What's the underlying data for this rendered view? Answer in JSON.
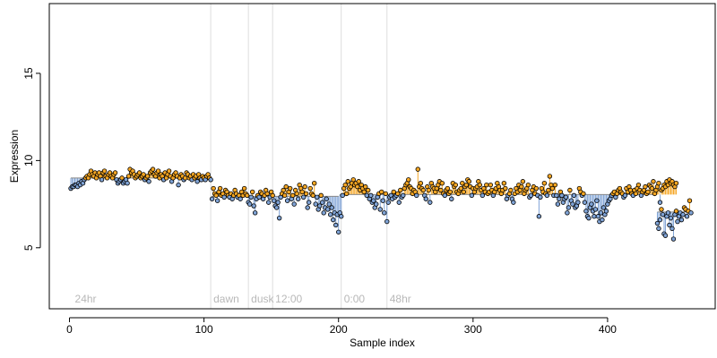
{
  "chart_data": {
    "type": "scatter",
    "title": "",
    "xlabel": "Sample index",
    "ylabel": "Expression",
    "xlim": [
      -15,
      480
    ],
    "ylim": [
      1.5,
      19
    ],
    "x_ticks": [
      0,
      100,
      200,
      300,
      400
    ],
    "y_ticks": [
      5,
      10,
      15
    ],
    "grid": false,
    "legend": "none",
    "baseline_segments": [
      {
        "x_start": 1,
        "x_end": 105,
        "y": 9.0
      },
      {
        "x_start": 106,
        "x_end": 200,
        "y": 7.95
      },
      {
        "x_start": 201,
        "x_end": 436,
        "y": 8.05
      },
      {
        "x_start": 437,
        "x_end": 462,
        "y": 7.05
      }
    ],
    "markers": [
      {
        "x": 105,
        "label": "dawn"
      },
      {
        "x": 133,
        "label": "dusk"
      },
      {
        "x": 151,
        "label": "12:00"
      },
      {
        "x": 202,
        "label": "0:00"
      },
      {
        "x": 236,
        "label": "48hr"
      }
    ],
    "start_label": "24hr",
    "colors": {
      "above": "#f5a623",
      "below": "#7fa3d6",
      "point_edge": "#000000",
      "marker_line": "#dddddd",
      "annotation": "#b8b8b8"
    },
    "series": [
      {
        "segment": 1,
        "x_start": 1,
        "y": [
          8.4,
          8.5,
          8.5,
          8.6,
          8.6,
          8.5,
          8.7,
          8.6,
          8.8,
          8.7,
          8.9,
          9.0,
          9.1,
          9.0,
          9.2,
          9.4,
          9.2,
          9.1,
          9.3,
          9.0,
          9.2,
          9.3,
          9.1,
          8.9,
          9.3,
          9.4,
          9.1,
          9.0,
          9.2,
          9.3,
          9.1,
          9.0,
          9.2,
          9.3,
          8.9,
          8.7,
          8.8,
          8.9,
          9.0,
          8.7,
          8.8,
          8.9,
          8.7,
          9.1,
          9.5,
          9.3,
          9.4,
          9.2,
          9.0,
          9.1,
          9.2,
          9.3,
          9.0,
          9.1,
          9.2,
          8.9,
          9.0,
          9.1,
          8.8,
          9.3,
          9.4,
          9.5,
          9.2,
          9.1,
          9.3,
          9.4,
          9.0,
          9.2,
          9.1,
          8.9,
          9.3,
          9.0,
          9.2,
          9.4,
          9.1,
          8.8,
          9.0,
          9.2,
          9.3,
          9.1,
          8.6,
          9.0,
          9.2,
          9.1,
          8.9,
          9.0,
          9.3,
          9.2,
          9.0,
          9.1,
          8.9,
          9.2,
          9.0,
          9.1,
          8.8,
          9.2,
          9.0,
          8.9,
          9.1,
          9.0,
          8.9,
          9.1,
          9.2,
          9.0,
          8.9
        ]
      },
      {
        "segment": 2,
        "x_start": 106,
        "y": [
          7.8,
          8.4,
          8.1,
          8.0,
          7.7,
          8.2,
          8.4,
          8.0,
          8.1,
          7.9,
          8.3,
          8.2,
          8.0,
          7.9,
          8.1,
          7.8,
          8.0,
          8.3,
          8.1,
          7.9,
          8.0,
          7.8,
          8.2,
          8.0,
          8.4,
          8.1,
          8.0,
          7.6,
          7.5,
          7.9,
          8.2,
          7.4,
          7.0,
          7.8,
          8.0,
          7.9,
          8.2,
          8.1,
          7.8,
          8.0,
          8.3,
          8.1,
          7.6,
          7.9,
          8.2,
          8.0,
          7.7,
          7.4,
          7.3,
          7.6,
          6.7,
          7.9,
          8.1,
          8.3,
          8.0,
          8.5,
          7.7,
          8.2,
          8.4,
          7.8,
          8.0,
          7.5,
          8.3,
          8.1,
          7.8,
          8.6,
          8.4,
          8.2,
          7.9,
          8.5,
          8.1,
          7.3,
          7.6,
          8.4,
          8.1,
          8.0,
          8.7,
          7.5,
          7.9,
          7.2,
          7.4,
          8.0,
          7.6,
          7.0,
          7.3,
          7.8,
          7.2,
          7.5,
          6.9,
          7.3,
          6.6,
          7.0,
          6.3,
          6.9,
          5.9
        ]
      },
      {
        "segment": 3,
        "x_start": 201,
        "y": [
          7.0,
          6.8,
          8.0,
          8.4,
          8.6,
          8.1,
          8.8,
          8.4,
          8.5,
          8.7,
          8.9,
          8.6,
          8.7,
          8.5,
          8.8,
          8.3,
          8.6,
          8.4,
          8.2,
          8.5,
          8.0,
          8.3,
          7.8,
          8.0,
          7.6,
          7.7,
          7.3,
          7.5,
          7.9,
          8.1,
          7.2,
          8.2,
          7.7,
          7.0,
          8.1,
          6.5,
          7.6,
          7.9,
          8.0,
          7.8,
          8.2,
          7.9,
          8.0,
          8.1,
          7.6,
          8.3,
          7.9,
          8.0,
          8.4,
          8.6,
          8.7,
          8.9,
          8.5,
          8.4,
          8.1,
          8.3,
          8.2,
          8.0,
          9.5,
          8.5,
          8.7,
          8.4,
          8.3,
          8.0,
          7.8,
          8.5,
          8.3,
          7.6,
          8.7,
          8.5,
          8.4,
          8.2,
          8.4,
          8.6,
          8.8,
          8.3,
          8.7,
          8.1,
          8.0,
          8.3,
          8.4,
          8.1,
          8.2,
          7.8,
          8.7,
          8.5,
          8.6,
          8.2,
          8.1,
          8.3,
          8.4,
          8.7,
          8.2,
          8.5,
          8.6,
          8.9,
          8.8,
          8.5,
          8.0,
          8.4,
          8.2,
          8.4,
          8.5,
          8.8,
          8.6,
          8.3,
          8.0,
          8.4,
          8.2,
          8.6,
          8.1,
          8.2,
          8.6,
          8.3,
          8.0,
          8.2,
          8.4,
          8.7,
          8.5,
          8.3,
          8.1,
          8.3,
          8.7,
          8.4,
          7.8,
          8.0,
          8.1,
          8.3,
          7.8,
          7.6,
          8.1,
          8.4,
          8.2,
          8.6,
          8.3,
          8.5,
          8.8,
          8.1,
          8.3,
          8.4,
          8.6,
          7.9,
          8.0,
          8.3,
          8.5,
          8.1,
          8.4,
          8.0,
          6.8,
          7.9,
          8.4,
          8.2,
          8.7,
          8.1,
          8.0,
          8.3,
          9.1,
          8.6,
          8.4,
          8.0,
          8.6,
          8.0,
          7.5,
          7.8,
          8.2,
          8.0,
          7.6,
          7.8,
          7.9,
          7.0,
          7.3,
          8.3,
          7.7,
          7.5,
          8.0,
          7.3,
          7.4,
          7.6,
          8.4,
          8.2,
          8.0,
          8.1,
          7.6,
          7.1,
          6.8,
          6.7,
          7.3,
          7.5,
          7.1,
          6.8,
          7.2,
          7.7,
          6.8,
          6.5,
          7.0,
          6.6,
          7.3,
          6.9,
          7.1,
          7.5,
          7.7,
          7.8,
          8.0,
          8.1,
          8.2,
          7.9,
          8.1,
          8.3,
          8.4,
          8.2,
          8.1,
          7.9,
          8.0,
          8.4,
          8.2,
          8.5,
          8.3,
          8.1,
          8.0,
          8.3,
          8.1,
          8.4,
          8.6,
          8.3,
          8.0,
          8.2,
          8.3,
          8.5,
          8.1,
          8.2,
          8.6,
          8.5,
          8.4,
          8.8,
          8.1,
          8.3,
          8.5,
          8.7,
          7.6,
          8.3,
          8.4,
          8.6,
          8.5,
          8.8,
          8.6,
          8.9,
          8.7,
          8.8,
          8.6,
          8.5,
          8.7
        ]
      },
      {
        "segment": 4,
        "x_start": 437,
        "y": [
          6.4,
          6.1,
          6.6,
          7.2,
          6.9,
          5.8,
          5.7,
          6.8,
          7.0,
          6.3,
          6.7,
          6.1,
          5.5,
          6.9,
          7.1,
          6.5,
          6.8,
          7.0,
          6.6,
          6.9,
          7.3,
          7.2,
          6.8,
          7.1,
          7.7,
          7.0
        ]
      }
    ]
  }
}
